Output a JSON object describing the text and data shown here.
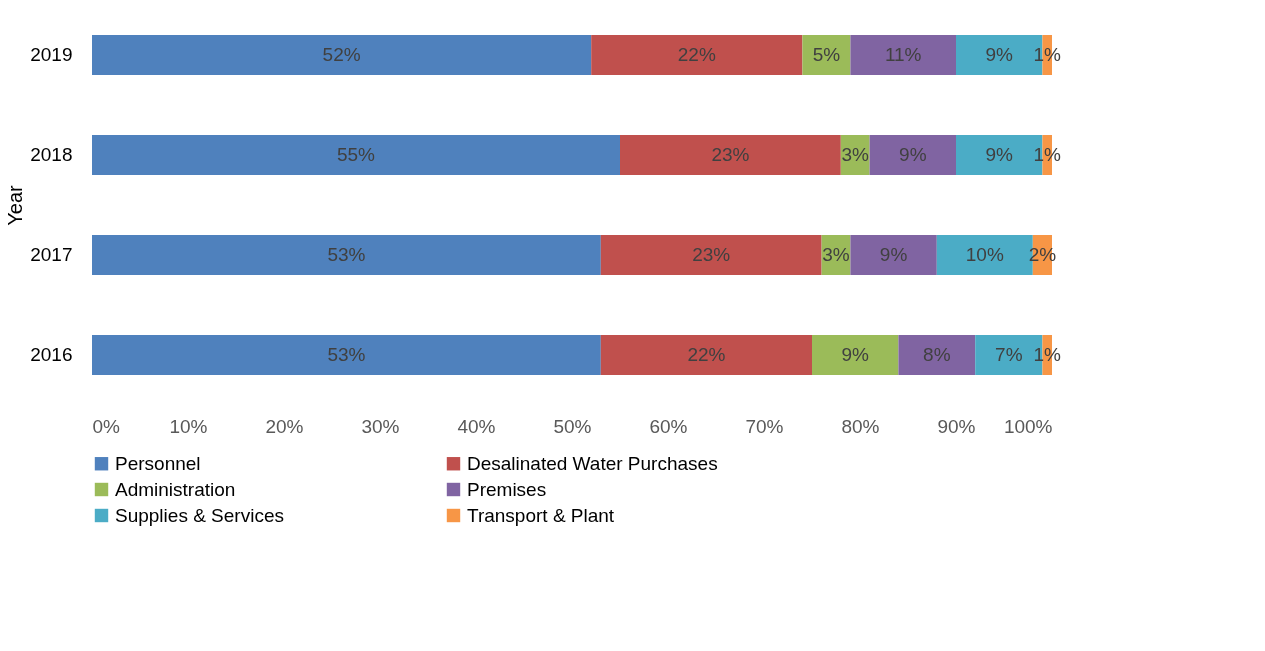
{
  "chart_data": {
    "type": "bar",
    "orientation": "horizontal",
    "stacked": true,
    "ylabel": "Year",
    "categories": [
      "2019",
      "2018",
      "2017",
      "2016"
    ],
    "series": [
      {
        "name": "Personnel",
        "color": "#4f81bd",
        "values": [
          52,
          55,
          53,
          53
        ],
        "value_labels": [
          "52%",
          "55%",
          "53%",
          "53%"
        ]
      },
      {
        "name": "Desalinated Water Purchases",
        "color": "#c0504d",
        "values": [
          22,
          23,
          23,
          22
        ],
        "value_labels": [
          "22%",
          "23%",
          "23%",
          "22%"
        ]
      },
      {
        "name": "Administration",
        "color": "#9bbb59",
        "values": [
          5,
          3,
          3,
          9
        ],
        "value_labels": [
          "5%",
          "3%",
          "3%",
          "9%"
        ]
      },
      {
        "name": "Premises",
        "color": "#8064a2",
        "values": [
          11,
          9,
          9,
          8
        ],
        "value_labels": [
          "11%",
          "9%",
          "9%",
          "8%"
        ]
      },
      {
        "name": "Supplies & Services",
        "color": "#4bacc6",
        "values": [
          9,
          9,
          10,
          7
        ],
        "value_labels": [
          "9%",
          "9%",
          "10%",
          "7%"
        ]
      },
      {
        "name": "Transport & Plant",
        "color": "#f79646",
        "values": [
          1,
          1,
          2,
          1
        ],
        "value_labels": [
          "1%",
          "1%",
          "2%",
          "1%"
        ]
      }
    ],
    "xlim": [
      0,
      100
    ],
    "xticks": [
      {
        "value": 0,
        "label": "0%"
      },
      {
        "value": 10,
        "label": "10%"
      },
      {
        "value": 20,
        "label": "20%"
      },
      {
        "value": 30,
        "label": "30%"
      },
      {
        "value": 40,
        "label": "40%"
      },
      {
        "value": 50,
        "label": "50%"
      },
      {
        "value": 60,
        "label": "60%"
      },
      {
        "value": 70,
        "label": "70%"
      },
      {
        "value": 80,
        "label": "80%"
      },
      {
        "value": 90,
        "label": "90%"
      },
      {
        "value": 100,
        "label": "100%"
      }
    ],
    "grid": false,
    "legend": "bottom"
  }
}
